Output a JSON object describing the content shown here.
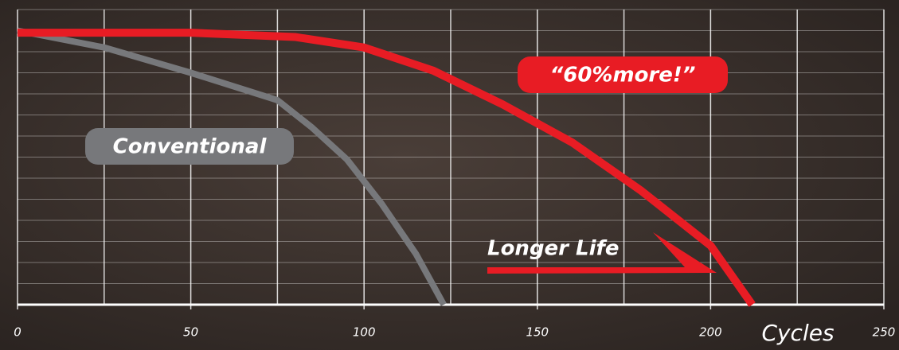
{
  "chart_data": {
    "type": "line",
    "x_label": "Cycles",
    "annotation": "Longer Life",
    "xlim": [
      0,
      250
    ],
    "xticks": [
      0,
      50,
      100,
      150,
      200,
      250
    ],
    "x_minor_ticks": [
      25,
      75,
      125,
      175,
      225
    ],
    "ylim": [
      0,
      14
    ],
    "yticks": [
      0,
      1,
      2,
      3,
      4,
      5,
      6,
      7,
      8,
      9,
      10,
      11,
      12,
      13,
      14
    ],
    "grid": true,
    "series": [
      {
        "name": "Conventional",
        "color": "#77787b",
        "x": [
          0,
          25,
          50,
          75,
          85,
          95,
          105,
          115,
          123
        ],
        "values": [
          13.0,
          12.2,
          11.0,
          9.7,
          8.4,
          6.9,
          4.8,
          2.4,
          0
        ]
      },
      {
        "name": "“60%more!”",
        "color": "#e81c24",
        "x": [
          0,
          50,
          80,
          100,
          120,
          140,
          160,
          180,
          200,
          212
        ],
        "values": [
          12.9,
          12.9,
          12.7,
          12.2,
          11.1,
          9.5,
          7.7,
          5.4,
          2.8,
          0
        ]
      }
    ]
  }
}
